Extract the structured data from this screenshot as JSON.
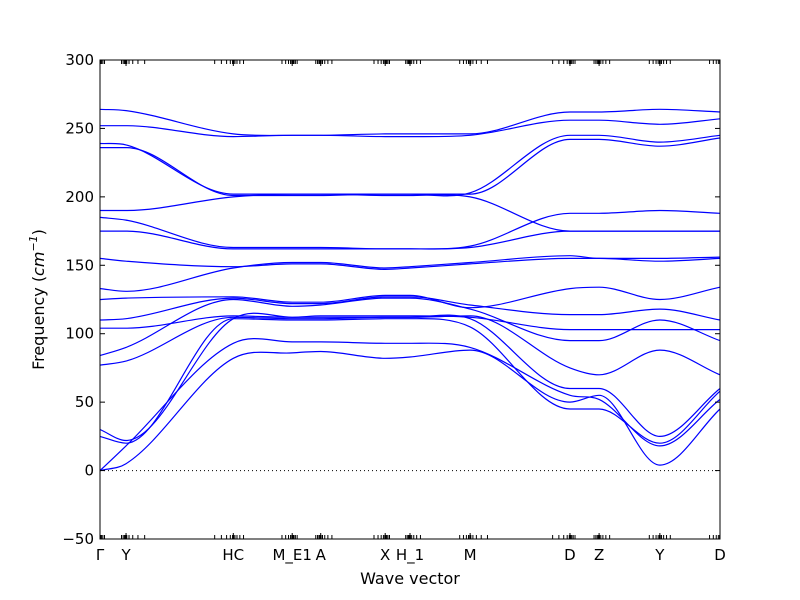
{
  "chart_data": {
    "type": "line",
    "title": "",
    "xlabel": "Wave vector",
    "ylabel": "Frequency ($cm^{-1}$)",
    "ylabel_parts": {
      "prefix": "Frequency (",
      "math_base": "cm",
      "math_exp": "−1",
      "suffix": ")"
    },
    "xlim": [
      0,
      10
    ],
    "ylim": [
      -50,
      300
    ],
    "yticks": [
      -50,
      0,
      50,
      100,
      150,
      200,
      250,
      300
    ],
    "ytick_labels": [
      "−50",
      "0",
      "50",
      "100",
      "150",
      "200",
      "250",
      "300"
    ],
    "grid": false,
    "zero_line": true,
    "line_color": "#0000ff",
    "high_symmetry_points": [
      {
        "label": "Γ",
        "x": 0.0
      },
      {
        "label": "Y",
        "x": 0.42
      },
      {
        "label": "HC",
        "x": 2.15
      },
      {
        "label": "M_E1",
        "x": 3.1
      },
      {
        "label": "A",
        "x": 3.56
      },
      {
        "label": "X",
        "x": 4.6
      },
      {
        "label": "H_1",
        "x": 5.0
      },
      {
        "label": "M",
        "x": 5.97
      },
      {
        "label": "D",
        "x": 7.58
      },
      {
        "label": "Z",
        "x": 8.05
      },
      {
        "label": "Y",
        "x": 9.03
      },
      {
        "label": "D",
        "x": 10.0
      }
    ],
    "series": [
      {
        "x": [
          0,
          0.42,
          2.15,
          3.1,
          3.56,
          4.6,
          5.0,
          5.97,
          7.58,
          8.05,
          9.03,
          10.0
        ],
        "values": [
          0,
          5,
          82,
          86,
          87,
          82,
          83,
          88,
          50,
          55,
          4,
          45
        ]
      },
      {
        "x": [
          0,
          0.42,
          2.15,
          3.1,
          3.56,
          4.6,
          5.0,
          5.97,
          7.58,
          8.05,
          9.03,
          10.0
        ],
        "values": [
          0,
          18,
          93,
          94,
          94,
          93,
          93,
          90,
          55,
          52,
          18,
          52
        ]
      },
      {
        "x": [
          0,
          0.42,
          2.15,
          3.1,
          3.56,
          4.6,
          5.0,
          5.97,
          7.58,
          8.05,
          9.03,
          10.0
        ],
        "values": [
          25,
          20,
          111,
          110,
          110,
          111,
          111,
          105,
          45,
          45,
          20,
          58
        ]
      },
      {
        "x": [
          0,
          0.42,
          2.15,
          3.1,
          3.56,
          4.6,
          5.0,
          5.97,
          7.58,
          8.05,
          9.03,
          10.0
        ],
        "values": [
          30,
          22,
          111,
          112,
          112,
          112,
          112,
          111,
          60,
          60,
          25,
          60
        ]
      },
      {
        "x": [
          0,
          0.42,
          2.15,
          3.1,
          3.56,
          4.6,
          5.0,
          5.97,
          7.58,
          8.05,
          9.03,
          10.0
        ],
        "values": [
          77,
          80,
          112,
          111,
          111,
          112,
          112,
          113,
          75,
          70,
          88,
          70
        ]
      },
      {
        "x": [
          0,
          0.42,
          2.15,
          3.1,
          3.56,
          4.6,
          5.0,
          5.97,
          7.58,
          8.05,
          9.03,
          10.0
        ],
        "values": [
          84,
          90,
          125,
          120,
          121,
          126,
          126,
          118,
          95,
          95,
          110,
          95
        ]
      },
      {
        "x": [
          0,
          0.42,
          2.15,
          3.1,
          3.56,
          4.6,
          5.0,
          5.97,
          7.58,
          8.05,
          9.03,
          10.0
        ],
        "values": [
          104,
          104,
          113,
          112,
          113,
          113,
          113,
          112,
          103,
          103,
          103,
          103
        ]
      },
      {
        "x": [
          0,
          0.42,
          2.15,
          3.1,
          3.56,
          4.6,
          5.0,
          5.97,
          7.58,
          8.05,
          9.03,
          10.0
        ],
        "values": [
          110,
          111,
          126,
          122,
          122,
          127,
          127,
          121,
          114,
          114,
          118,
          110
        ]
      },
      {
        "x": [
          0,
          0.42,
          2.15,
          3.1,
          3.56,
          4.6,
          5.0,
          5.97,
          7.58,
          8.05,
          9.03,
          10.0
        ],
        "values": [
          125,
          126,
          127,
          123,
          123,
          128,
          128,
          119,
          133,
          134,
          125,
          134
        ]
      },
      {
        "x": [
          0,
          0.42,
          2.15,
          3.1,
          3.56,
          4.6,
          5.0,
          5.97,
          7.58,
          8.05,
          9.03,
          10.0
        ],
        "values": [
          133,
          131,
          148,
          152,
          152,
          148,
          149,
          152,
          157,
          155,
          155,
          156
        ]
      },
      {
        "x": [
          0,
          0.42,
          2.15,
          3.1,
          3.56,
          4.6,
          5.0,
          5.97,
          7.58,
          8.05,
          9.03,
          10.0
        ],
        "values": [
          155,
          153,
          149,
          151,
          151,
          147,
          148,
          151,
          155,
          155,
          153,
          155
        ]
      },
      {
        "x": [
          0,
          0.42,
          2.15,
          3.1,
          3.56,
          4.6,
          5.0,
          5.97,
          7.58,
          8.05,
          9.03,
          10.0
        ],
        "values": [
          175,
          175,
          162,
          162,
          162,
          162,
          162,
          163,
          175,
          175,
          175,
          175
        ]
      },
      {
        "x": [
          0,
          0.42,
          2.15,
          3.1,
          3.56,
          4.6,
          5.0,
          5.97,
          7.58,
          8.05,
          9.03,
          10.0
        ],
        "values": [
          185,
          183,
          163,
          163,
          163,
          162,
          162,
          164,
          188,
          188,
          190,
          188
        ]
      },
      {
        "x": [
          0,
          0.42,
          2.15,
          3.1,
          3.56,
          4.6,
          5.0,
          5.97,
          7.58,
          8.05,
          9.03,
          10.0
        ],
        "values": [
          190,
          190,
          200,
          202,
          202,
          201,
          201,
          200,
          175,
          175,
          175,
          175
        ]
      },
      {
        "x": [
          0,
          0.42,
          2.15,
          3.1,
          3.56,
          4.6,
          5.0,
          5.97,
          7.58,
          8.05,
          9.03,
          10.0
        ],
        "values": [
          236,
          236,
          201,
          201,
          201,
          202,
          202,
          202,
          242,
          242,
          237,
          243
        ]
      },
      {
        "x": [
          0,
          0.42,
          2.15,
          3.1,
          3.56,
          4.6,
          5.0,
          5.97,
          7.58,
          8.05,
          9.03,
          10.0
        ],
        "values": [
          239,
          238,
          202,
          202,
          202,
          202,
          202,
          203,
          245,
          245,
          240,
          245
        ]
      },
      {
        "x": [
          0,
          0.42,
          2.15,
          3.1,
          3.56,
          4.6,
          5.0,
          5.97,
          7.58,
          8.05,
          9.03,
          10.0
        ],
        "values": [
          252,
          252,
          244,
          245,
          245,
          244,
          244,
          245,
          256,
          256,
          253,
          257
        ]
      },
      {
        "x": [
          0,
          0.42,
          2.15,
          3.1,
          3.56,
          4.6,
          5.0,
          5.97,
          7.58,
          8.05,
          9.03,
          10.0
        ],
        "values": [
          264,
          263,
          246,
          245,
          245,
          246,
          246,
          246,
          262,
          262,
          264,
          262
        ]
      }
    ]
  }
}
